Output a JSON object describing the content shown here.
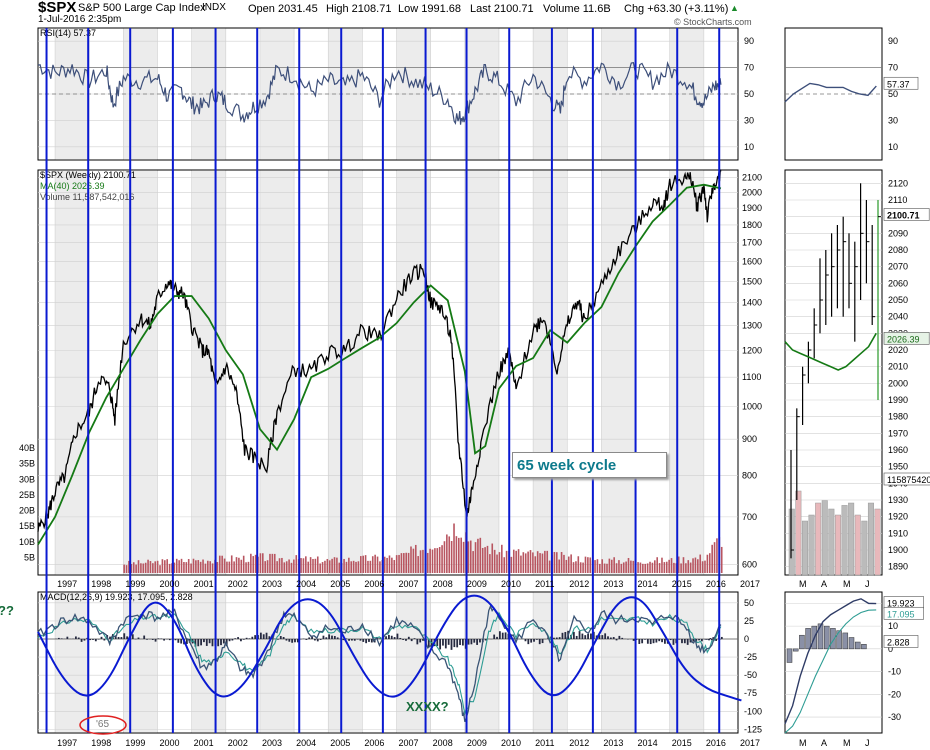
{
  "header": {
    "symbol": "$SPX",
    "name": "S&P 500 Large Cap Index",
    "exchange": "INDX",
    "date": "1-Jul-2016 2:35pm",
    "open": "Open 2031.45",
    "high": "High 2108.71",
    "low": "Low 1991.68",
    "last": "Last 2100.71",
    "volume": "Volume 11.6B",
    "chg": "Chg +63.30 (+3.11%)",
    "chg_arrow": "▲",
    "credit": "© StockCharts.com"
  },
  "annotations": {
    "cycle_label": "65 week cycle",
    "xxxx": "XXXX?",
    "circled": "'65",
    "left_marks": "??"
  },
  "colors": {
    "price": "#000000",
    "ma": "#157a15",
    "rsi": "#3d4f7a",
    "volume": "#b85560",
    "cycle_lines": "#0a1ad1",
    "macd_line": "#3a5475",
    "signal_line": "#2e9d94",
    "histogram": "#262a40",
    "grid": "#d0d0d0",
    "shade": "#ececec",
    "circle": "#e02020",
    "annotation_green": "#166b3a"
  },
  "chart_data": [
    {
      "type": "line",
      "panel": "rsi",
      "title": "RSI(14) 57.37",
      "x_label_years": [
        "1997",
        "1998",
        "1999",
        "2000",
        "2001",
        "2002",
        "2003",
        "2004",
        "2005",
        "2006",
        "2007",
        "2008",
        "2009",
        "2010",
        "2011",
        "2012",
        "2013",
        "2014",
        "2015",
        "2016",
        "2017"
      ],
      "y_ticks": [
        90,
        70,
        50,
        30,
        10
      ],
      "ylim": [
        0,
        100
      ],
      "reference_lines": [
        70,
        50
      ],
      "series": [
        {
          "name": "RSI(14) 57.37",
          "x": [
            1996.5,
            1997.0,
            1997.5,
            1998.0,
            1998.5,
            1998.7,
            1999.0,
            1999.5,
            2000.0,
            2000.3,
            2000.7,
            2001.0,
            2001.3,
            2001.7,
            2002.0,
            2002.5,
            2002.8,
            2003.2,
            2003.5,
            2004.0,
            2004.5,
            2005.0,
            2005.5,
            2006.0,
            2006.5,
            2007.0,
            2007.5,
            2008.0,
            2008.5,
            2008.8,
            2009.0,
            2009.3,
            2009.6,
            2010.0,
            2010.5,
            2011.0,
            2011.5,
            2011.8,
            2012.0,
            2012.5,
            2013.0,
            2013.5,
            2014.0,
            2014.5,
            2015.0,
            2015.5,
            2015.8,
            2016.0,
            2016.3,
            2016.5
          ],
          "values": [
            72,
            66,
            70,
            60,
            68,
            42,
            62,
            60,
            62,
            48,
            54,
            42,
            40,
            50,
            44,
            34,
            40,
            48,
            68,
            64,
            52,
            60,
            56,
            64,
            46,
            68,
            60,
            54,
            46,
            30,
            36,
            52,
            68,
            60,
            44,
            64,
            46,
            36,
            66,
            60,
            72,
            58,
            70,
            60,
            68,
            60,
            48,
            44,
            56,
            57
          ]
        }
      ]
    },
    {
      "type": "line",
      "panel": "price",
      "title": "$SPX (Weekly) 2100.71",
      "legend": [
        "$SPX (Weekly) 2100.71",
        "MA(40) 2026.39",
        "Volume 11,587,542,016"
      ],
      "scale": "log",
      "ylim": [
        580,
        2150
      ],
      "y_ticks": [
        600,
        700,
        800,
        900,
        1000,
        1100,
        1200,
        1300,
        1400,
        1500,
        1600,
        1700,
        1800,
        1900,
        2000,
        2100
      ],
      "volume_ticks": [
        "40B",
        "35B",
        "30B",
        "25B",
        "20B",
        "15B",
        "10B",
        "5B"
      ],
      "last_value_tag": "2100.71",
      "x_label_years": [
        "1997",
        "1998",
        "1999",
        "2000",
        "2001",
        "2002",
        "2003",
        "2004",
        "2005",
        "2006",
        "2007",
        "2008",
        "2009",
        "2010",
        "2011",
        "2012",
        "2013",
        "2014",
        "2015",
        "2016",
        "2017"
      ],
      "series": [
        {
          "name": "$SPX (Weekly) 2100.71",
          "x": [
            1996.5,
            1996.8,
            1997.0,
            1997.3,
            1997.6,
            1998.0,
            1998.3,
            1998.6,
            1998.75,
            1999.0,
            1999.5,
            1999.8,
            2000.0,
            2000.3,
            2000.5,
            2000.75,
            2001.0,
            2001.3,
            2001.5,
            2001.7,
            2002.0,
            2002.3,
            2002.55,
            2002.8,
            2003.2,
            2003.5,
            2004.0,
            2004.5,
            2005.0,
            2005.5,
            2006.0,
            2006.5,
            2007.0,
            2007.45,
            2007.8,
            2008.0,
            2008.3,
            2008.6,
            2008.8,
            2009.05,
            2009.2,
            2009.5,
            2010.0,
            2010.3,
            2010.5,
            2011.0,
            2011.3,
            2011.7,
            2012.0,
            2012.3,
            2012.5,
            2013.0,
            2013.5,
            2014.0,
            2014.5,
            2014.8,
            2015.0,
            2015.4,
            2015.65,
            2015.8,
            2016.0,
            2016.1,
            2016.3,
            2016.5
          ],
          "values": [
            670,
            710,
            760,
            800,
            920,
            980,
            1100,
            1060,
            960,
            1230,
            1330,
            1300,
            1420,
            1500,
            1460,
            1440,
            1300,
            1200,
            1190,
            1060,
            1140,
            1050,
            870,
            850,
            820,
            980,
            1130,
            1120,
            1190,
            1200,
            1280,
            1250,
            1420,
            1530,
            1560,
            1400,
            1380,
            1250,
            900,
            700,
            760,
            900,
            1120,
            1190,
            1050,
            1280,
            1340,
            1130,
            1300,
            1410,
            1320,
            1480,
            1650,
            1780,
            1940,
            1910,
            2050,
            2100,
            2080,
            1910,
            2040,
            1850,
            2060,
            2100
          ]
        },
        {
          "name": "MA(40) 2026.39",
          "x": [
            1996.5,
            1997.0,
            1997.5,
            1998.0,
            1998.5,
            1999.0,
            1999.5,
            2000.0,
            2000.5,
            2001.0,
            2001.5,
            2002.0,
            2002.5,
            2003.0,
            2003.5,
            2004.0,
            2004.5,
            2005.0,
            2005.5,
            2006.0,
            2006.5,
            2007.0,
            2007.5,
            2008.0,
            2008.5,
            2009.0,
            2009.3,
            2009.6,
            2010.0,
            2010.5,
            2011.0,
            2011.5,
            2012.0,
            2012.5,
            2013.0,
            2013.5,
            2014.0,
            2014.5,
            2015.0,
            2015.5,
            2016.0,
            2016.5
          ],
          "values": [
            640,
            700,
            800,
            920,
            1030,
            1130,
            1240,
            1350,
            1430,
            1430,
            1330,
            1200,
            1110,
            930,
            870,
            960,
            1100,
            1130,
            1170,
            1210,
            1250,
            1310,
            1400,
            1480,
            1410,
            1120,
            860,
            880,
            1060,
            1140,
            1170,
            1280,
            1230,
            1310,
            1380,
            1540,
            1680,
            1820,
            1920,
            2030,
            2050,
            2026
          ]
        },
        {
          "name": "Volume 11,587,542,016",
          "x": [
            1999.0,
            2001.0,
            2003.0,
            2005.0,
            2007.0,
            2008.0,
            2008.8,
            2009.2,
            2010.0,
            2011.0,
            2012.0,
            2013.0,
            2014.0,
            2015.0,
            2016.0,
            2016.5
          ],
          "values_billions": [
            3,
            4,
            5,
            4,
            5,
            9,
            16,
            10,
            7,
            6,
            5,
            4,
            4,
            4,
            5,
            11.6
          ]
        }
      ]
    },
    {
      "type": "line",
      "panel": "macd",
      "title": "MACD(12,26,9) 19.923, 17.095, 2.828",
      "y_ticks": [
        50,
        25,
        0,
        -25,
        -50,
        -75,
        -100,
        -125
      ],
      "ylim": [
        -130,
        65
      ],
      "x_label_years": [
        "1997",
        "1998",
        "1999",
        "2000",
        "2001",
        "2002",
        "2003",
        "2004",
        "2005",
        "2006",
        "2007",
        "2008",
        "2009",
        "2010",
        "2011",
        "2012",
        "2013",
        "2014",
        "2015",
        "2016",
        "2017"
      ],
      "series": [
        {
          "name": "MACD 19.923",
          "x": [
            1996.5,
            1997.0,
            1997.5,
            1998.0,
            1998.6,
            1999.0,
            1999.5,
            2000.0,
            2000.5,
            2001.0,
            2001.3,
            2001.7,
            2002.0,
            2002.5,
            2002.8,
            2003.3,
            2003.7,
            2004.0,
            2004.5,
            2005.0,
            2005.5,
            2006.0,
            2006.5,
            2007.0,
            2007.5,
            2008.0,
            2008.5,
            2008.8,
            2009.0,
            2009.3,
            2009.7,
            2010.0,
            2010.5,
            2011.0,
            2011.5,
            2011.8,
            2012.2,
            2012.7,
            2013.0,
            2013.5,
            2014.0,
            2014.5,
            2015.0,
            2015.5,
            2015.8,
            2016.1,
            2016.5
          ],
          "values": [
            5,
            20,
            30,
            25,
            -5,
            25,
            35,
            30,
            35,
            -10,
            -40,
            -30,
            -10,
            -45,
            -50,
            -10,
            35,
            30,
            5,
            15,
            10,
            20,
            -5,
            25,
            15,
            -15,
            -35,
            -75,
            -115,
            -60,
            40,
            35,
            -5,
            30,
            -5,
            -30,
            25,
            10,
            35,
            25,
            30,
            20,
            35,
            15,
            -10,
            -15,
            19.9
          ]
        },
        {
          "name": "Signal 17.095",
          "x": [
            1996.5,
            1997.0,
            1997.5,
            1998.0,
            1998.6,
            1999.0,
            1999.5,
            2000.0,
            2000.5,
            2001.0,
            2001.3,
            2001.7,
            2002.0,
            2002.5,
            2002.8,
            2003.3,
            2003.7,
            2004.0,
            2004.5,
            2005.0,
            2005.5,
            2006.0,
            2006.5,
            2007.0,
            2007.5,
            2008.0,
            2008.5,
            2008.8,
            2009.0,
            2009.3,
            2009.7,
            2010.0,
            2010.5,
            2011.0,
            2011.5,
            2011.8,
            2012.2,
            2012.7,
            2013.0,
            2013.5,
            2014.0,
            2014.5,
            2015.0,
            2015.5,
            2015.8,
            2016.1,
            2016.5
          ],
          "values": [
            2,
            15,
            27,
            25,
            0,
            15,
            30,
            30,
            32,
            0,
            -30,
            -32,
            -15,
            -35,
            -48,
            -20,
            22,
            30,
            10,
            12,
            12,
            15,
            0,
            18,
            18,
            -5,
            -28,
            -60,
            -100,
            -80,
            10,
            35,
            5,
            25,
            2,
            -20,
            15,
            14,
            28,
            26,
            28,
            22,
            30,
            20,
            -2,
            -15,
            17.1
          ]
        },
        {
          "name": "Histogram 2.828",
          "x": [
            1997,
            1998,
            1999,
            2000,
            2001,
            2002,
            2003,
            2004,
            2005,
            2006,
            2007,
            2008,
            2009,
            2010,
            2011,
            2012,
            2013,
            2014,
            2015,
            2016,
            2016.5
          ],
          "values": [
            4,
            -3,
            6,
            -2,
            -8,
            -6,
            10,
            -4,
            3,
            -4,
            5,
            -10,
            -12,
            8,
            -6,
            9,
            5,
            -3,
            -5,
            -4,
            2.828
          ]
        },
        {
          "name": "65 week cycle",
          "x": [
            1996.5,
            1997.2,
            1997.9,
            1998.55,
            1999.2,
            1999.85,
            2000.5,
            2001.15,
            2001.8,
            2002.45,
            2003.1,
            2003.75,
            2004.4,
            2005.05,
            2005.7,
            2006.35,
            2007.0,
            2007.65,
            2008.3,
            2008.95,
            2009.6,
            2010.25,
            2010.9,
            2011.55,
            2012.2,
            2012.85,
            2013.5,
            2014.15,
            2014.8,
            2015.45,
            2016.1,
            2016.75,
            2017.1
          ],
          "values": [
            10,
            -55,
            -85,
            -60,
            5,
            60,
            30,
            -45,
            -85,
            -70,
            -20,
            40,
            60,
            40,
            -20,
            -70,
            -85,
            -50,
            15,
            60,
            60,
            15,
            -50,
            -85,
            -60,
            0,
            55,
            60,
            10,
            -45,
            -70,
            -80,
            -85
          ]
        }
      ]
    }
  ],
  "right_panel": {
    "x_labels": [
      "M",
      "A",
      "M",
      "J"
    ],
    "rsi_ticks": [
      90,
      70,
      50,
      30,
      10
    ],
    "rsi_value_tag": "57.37",
    "price_ticks": [
      2120,
      2110,
      2100,
      2090,
      2080,
      2070,
      2060,
      2050,
      2040,
      2030,
      2020,
      2010,
      2000,
      1990,
      1980,
      1970,
      1960,
      1950,
      1940,
      1930,
      1920,
      1910,
      1900,
      1890
    ],
    "price_tag": "2100.71",
    "ma_tag": "2026.39",
    "volume_tag": "11587542016",
    "macd_ticks": [
      20,
      10,
      0,
      -10,
      -20,
      -30
    ],
    "macd_tag": "19.923",
    "signal_tag": "17.095",
    "hist_tag": "2.828"
  }
}
